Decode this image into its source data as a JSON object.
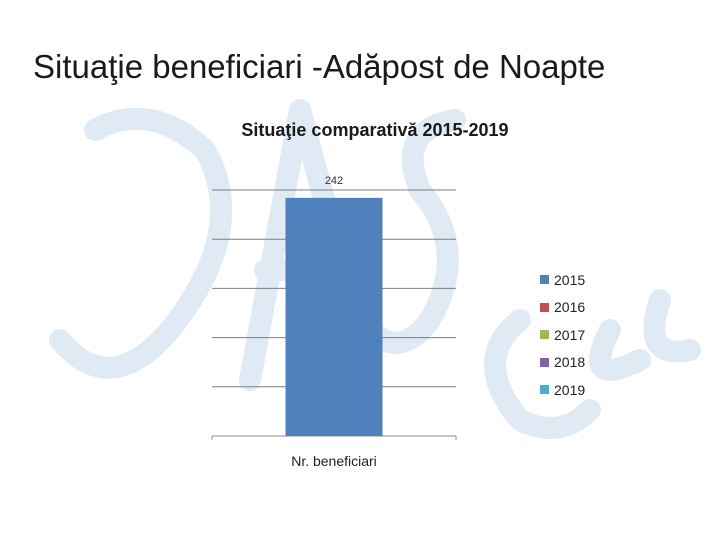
{
  "slide": {
    "title": "Situaţie beneficiari -Adăpost de Noapte"
  },
  "chart_data": {
    "type": "bar",
    "title": "Situaţie comparativă 2015-2019",
    "categories": [
      "Nr. beneficiari"
    ],
    "series": [
      {
        "name": "2015",
        "values": [
          242
        ],
        "color": "#4f81bd"
      },
      {
        "name": "2016",
        "values": [
          null
        ],
        "color": "#c0504d"
      },
      {
        "name": "2017",
        "values": [
          null
        ],
        "color": "#9bbb59"
      },
      {
        "name": "2018",
        "values": [
          null
        ],
        "color": "#8064a2"
      },
      {
        "name": "2019",
        "values": [
          null
        ],
        "color": "#4bacc6"
      }
    ],
    "data_labels": [
      "242"
    ],
    "ylim": [
      0,
      250
    ],
    "grid": true,
    "legend": "right"
  }
}
